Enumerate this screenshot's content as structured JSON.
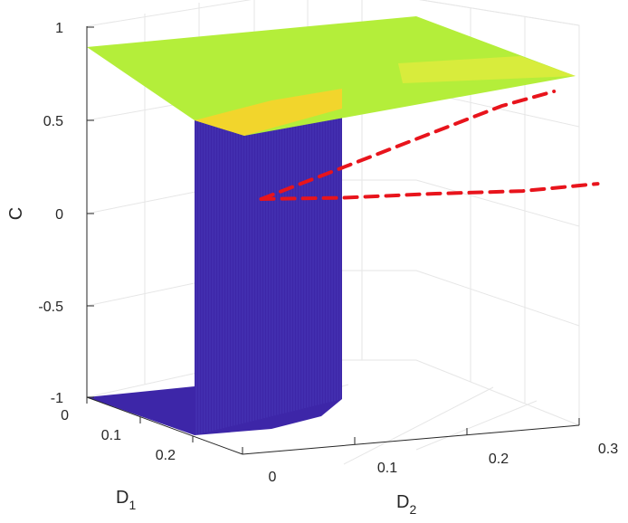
{
  "chart_data": {
    "type": "surface",
    "title": "",
    "xlabel": {
      "main": "D",
      "sub": "1"
    },
    "ylabel": {
      "main": "D",
      "sub": "2"
    },
    "zlabel": "C",
    "xlim": [
      0,
      0.25
    ],
    "ylim": [
      0,
      0.3
    ],
    "zlim": [
      -1,
      1
    ],
    "x_ticks": [
      "0",
      "0.1",
      "0.2"
    ],
    "y_ticks": [
      "0",
      "0.1",
      "0.2",
      "0.3"
    ],
    "z_ticks": [
      "-1",
      "-0.5",
      "0",
      "0.5",
      "1"
    ],
    "grid": true,
    "colors": {
      "low": "#3d26a8",
      "mid": "#f5d02a",
      "high": "#b4ee3a",
      "curve": "#e8141c",
      "grid": "#e6e6e6",
      "axis": "#262626"
    },
    "surfaces": [
      {
        "name": "",
        "region": "upper plateau",
        "z": 0.9
      },
      {
        "name": "",
        "region": "lower plateau",
        "z": -1.0
      },
      {
        "name": "",
        "region": "transition wall",
        "z_range": [
          -1.0,
          0.5
        ]
      }
    ],
    "series": [
      {
        "name": "",
        "style": "dashed",
        "points": [
          [
            0.22,
            0.0,
            -0.2
          ],
          [
            0.18,
            0.05,
            -0.17
          ],
          [
            0.12,
            0.1,
            -0.1
          ],
          [
            0.07,
            0.15,
            -0.05
          ],
          [
            0.04,
            0.2,
            0.0
          ]
        ]
      },
      {
        "name": "",
        "style": "dashed",
        "points": [
          [
            0.22,
            0.0,
            -0.2
          ],
          [
            0.15,
            0.04,
            0.05
          ],
          [
            0.1,
            0.08,
            0.25
          ],
          [
            0.05,
            0.12,
            0.45
          ],
          [
            0.02,
            0.15,
            0.55
          ]
        ]
      }
    ]
  }
}
